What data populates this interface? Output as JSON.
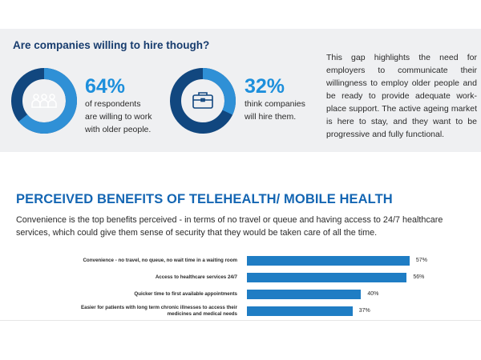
{
  "top": {
    "title": "Are companies willing to hire though?",
    "stats": [
      {
        "percent_text": "64%",
        "fraction": 0.64,
        "icon": "people-icon",
        "desc_lines": [
          "of respondents",
          "are willing to work",
          "with older people."
        ]
      },
      {
        "percent_text": "32%",
        "fraction": 0.32,
        "icon": "briefcase-icon",
        "desc_lines": [
          "think companies",
          "will hire them."
        ]
      }
    ],
    "gap_text": "This gap highlights the need for employers to communicate their willingness to employ older people and be ready to provide adequate work-place support. The active ageing market is here to stay, and they want to be progressive and fully functional."
  },
  "section": {
    "title": "PERCEIVED BENEFITS OF TELEHEALTH/ MOBILE HEALTH",
    "subtitle": "Convenience is the top benefits perceived - in terms of no travel or queue and having access to 24/7 healthcare services, which could give them sense of security that they would be taken care of all the time."
  },
  "colors": {
    "donut_dark": "#11477f",
    "donut_light": "#2f90d6",
    "bar": "#1f7dc4",
    "accent_text": "#1d8fdc",
    "title_blue": "#1466b3"
  },
  "chart_data": {
    "type": "bar",
    "orientation": "horizontal",
    "categories": [
      [
        "Convenience - no travel, no queue, no wait time in a waiting room"
      ],
      [
        "Access to healthcare services 24/7"
      ],
      [
        "Quicker time to first available appointments"
      ],
      [
        "Easier for patients with long term chronic illnesses to access their",
        "medicines and medical needs"
      ]
    ],
    "values": [
      57,
      56,
      40,
      37
    ],
    "value_labels": [
      "57%",
      "56%",
      "40%",
      "37%"
    ],
    "xlim": [
      0,
      100
    ]
  }
}
